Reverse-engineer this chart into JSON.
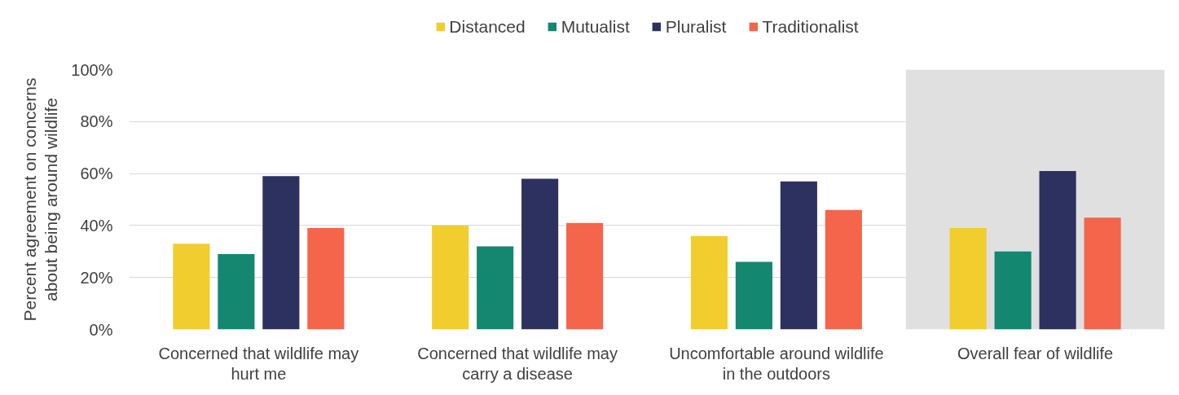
{
  "chart_data": {
    "type": "bar",
    "categories": [
      "Concerned that wildlife may hurt me",
      "Concerned that wildlife may carry a disease",
      "Uncomfortable around wildlife in the outdoors",
      "Overall fear of wildlife"
    ],
    "series": [
      {
        "name": "Distanced",
        "color": "#f2cd2e",
        "values": [
          33,
          40,
          36,
          39
        ]
      },
      {
        "name": "Mutualist",
        "color": "#13876f",
        "values": [
          29,
          32,
          26,
          30
        ]
      },
      {
        "name": "Pluralist",
        "color": "#2d3160",
        "values": [
          59,
          58,
          57,
          61
        ]
      },
      {
        "name": "Traditionalist",
        "color": "#f4654b",
        "values": [
          39,
          41,
          46,
          43
        ]
      }
    ],
    "ylabel": "Percent agreement on concerns about being around wildlife",
    "ylim": [
      0,
      100
    ],
    "yticks": [
      {
        "value": 0,
        "label": "0%"
      },
      {
        "value": 20,
        "label": "20%"
      },
      {
        "value": 40,
        "label": "40%"
      },
      {
        "value": 60,
        "label": "60%"
      },
      {
        "value": 80,
        "label": "80%"
      },
      {
        "value": 100,
        "label": "100%"
      }
    ],
    "grid": "y",
    "legend": "top",
    "bands": [
      {
        "axis": "x",
        "from": "Overall fear of wildlife",
        "to": "Overall fear of wildlife",
        "color": "#e0e0e0"
      }
    ]
  }
}
